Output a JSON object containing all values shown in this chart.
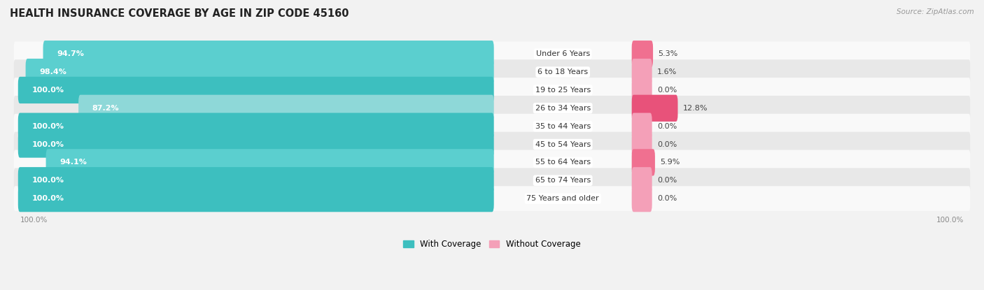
{
  "title": "HEALTH INSURANCE COVERAGE BY AGE IN ZIP CODE 45160",
  "source": "Source: ZipAtlas.com",
  "categories": [
    "Under 6 Years",
    "6 to 18 Years",
    "19 to 25 Years",
    "26 to 34 Years",
    "35 to 44 Years",
    "45 to 54 Years",
    "55 to 64 Years",
    "65 to 74 Years",
    "75 Years and older"
  ],
  "with_coverage": [
    94.7,
    98.4,
    100.0,
    87.2,
    100.0,
    100.0,
    94.1,
    100.0,
    100.0
  ],
  "without_coverage": [
    5.3,
    1.6,
    0.0,
    12.8,
    0.0,
    0.0,
    5.9,
    0.0,
    0.0
  ],
  "color_with": "#3DBFBF",
  "color_with_light": "#8ED8D8",
  "color_without_light": "#F4A0B8",
  "color_without_dark": "#E8527A",
  "bg_color": "#f2f2f2",
  "row_bg_light": "#f9f9f9",
  "row_bg_dark": "#e8e8e8",
  "title_fontsize": 10.5,
  "bar_label_fontsize": 8.0,
  "cat_label_fontsize": 8.0,
  "axis_label_fontsize": 7.5,
  "legend_fontsize": 8.5,
  "source_fontsize": 7.5,
  "legend_with": "With Coverage",
  "legend_without": "Without Coverage",
  "left_axis_label": "100.0%",
  "right_axis_label": "100.0%"
}
